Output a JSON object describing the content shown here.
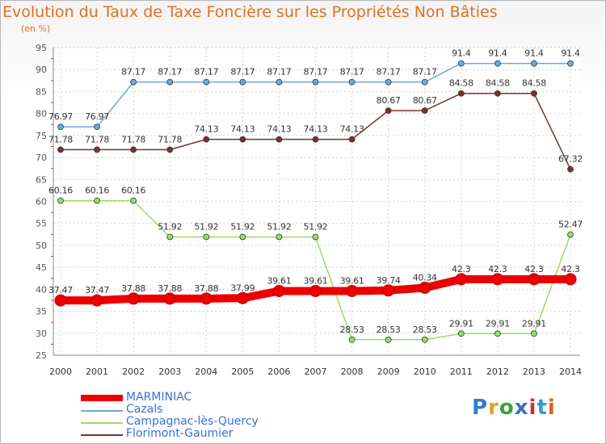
{
  "chart_data": {
    "type": "line",
    "title": "Evolution du Taux de Taxe Foncière sur les Propriétés Non Bâties",
    "subtitle": "(en %)",
    "xlabel": "",
    "ylabel": "",
    "categories": [
      "2000",
      "2001",
      "2002",
      "2003",
      "2004",
      "2005",
      "2006",
      "2007",
      "2008",
      "2009",
      "2010",
      "2011",
      "2012",
      "2013",
      "2014"
    ],
    "ylim": [
      25,
      95
    ],
    "yticks": [
      "25",
      "30",
      "35",
      "40",
      "45",
      "50",
      "55",
      "60",
      "65",
      "70",
      "75",
      "80",
      "85",
      "90",
      "95"
    ],
    "grid": true,
    "series": [
      {
        "name": "MARMINIAC",
        "color": "#ee0000",
        "values": [
          37.47,
          37.47,
          37.88,
          37.88,
          37.88,
          37.99,
          39.61,
          39.61,
          39.61,
          39.74,
          40.34,
          42.3,
          42.3,
          42.3,
          42.3
        ],
        "labels": [
          "37.47",
          "37.47",
          "37.88",
          "37.88",
          "37.88",
          "37.99",
          "39.61",
          "39.61",
          "39.61",
          "39.74",
          "40.34",
          "42.3",
          "42.3",
          "42.3",
          "42.3"
        ]
      },
      {
        "name": "Cazals",
        "color": "#6fa8dc",
        "values": [
          76.97,
          76.97,
          87.17,
          87.17,
          87.17,
          87.17,
          87.17,
          87.17,
          87.17,
          87.17,
          87.17,
          91.4,
          91.4,
          91.4,
          91.4
        ],
        "labels": [
          "76.97",
          "76.97",
          "87.17",
          "87.17",
          "87.17",
          "87.17",
          "87.17",
          "87.17",
          "87.17",
          "87.17",
          "87.17",
          "91.4",
          "91.4",
          "91.4",
          "91.4"
        ]
      },
      {
        "name": "Campagnac-lès-Quercy",
        "color": "#99dd66",
        "values": [
          60.16,
          60.16,
          60.16,
          51.92,
          51.92,
          51.92,
          51.92,
          51.92,
          28.53,
          28.53,
          28.53,
          29.91,
          29.91,
          29.91,
          52.47
        ],
        "labels": [
          "60.16",
          "60.16",
          "60.16",
          "51.92",
          "51.92",
          "51.92",
          "51.92",
          "51.92",
          "28.53",
          "28.53",
          "28.53",
          "29.91",
          "29.91",
          "29.91",
          "52.47"
        ]
      },
      {
        "name": "Florimont-Gaumier",
        "color": "#7a3030",
        "values": [
          71.78,
          71.78,
          71.78,
          71.78,
          74.13,
          74.13,
          74.13,
          74.13,
          74.13,
          80.67,
          80.67,
          84.58,
          84.58,
          84.58,
          67.32
        ],
        "labels": [
          "71.78",
          "71.78",
          "71.78",
          "71.78",
          "74.13",
          "74.13",
          "74.13",
          "74.13",
          "74.13",
          "80.67",
          "80.67",
          "84.58",
          "84.58",
          "84.58",
          "67.32"
        ]
      }
    ]
  },
  "logo": {
    "text": "Prox iti"
  }
}
